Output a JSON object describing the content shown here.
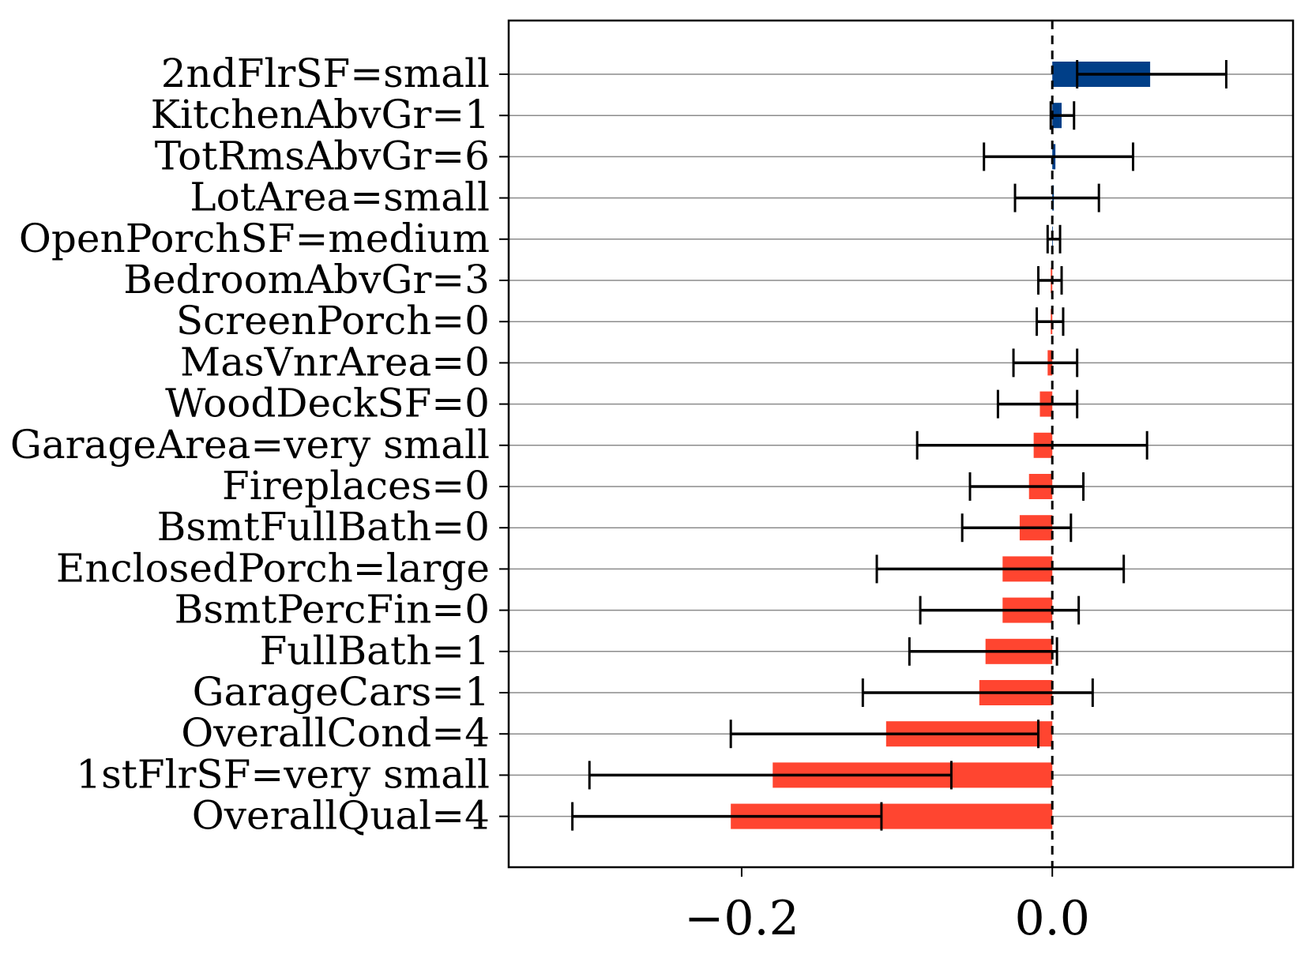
{
  "chart_data": {
    "type": "bar",
    "orientation": "horizontal",
    "title": "",
    "xlabel": "",
    "ylabel": "",
    "xlim": [
      -0.35,
      0.155
    ],
    "grid": "horizontal",
    "zero_line": "dashed",
    "x_ticks": [
      -0.2,
      0.0
    ],
    "x_tick_labels": [
      "−0.2",
      "0.0"
    ],
    "colors": {
      "positive": "#003f88",
      "negative": "#ff4530",
      "error": "#000000",
      "grid": "#8c8c8c"
    },
    "bars": [
      {
        "label": "2ndFlrSF=small",
        "value": 0.063,
        "err_low": 0.016,
        "err_high": 0.112
      },
      {
        "label": "KitchenAbvGr=1",
        "value": 0.006,
        "err_low": -0.001,
        "err_high": 0.014
      },
      {
        "label": "TotRmsAbvGr=6",
        "value": 0.002,
        "err_low": -0.044,
        "err_high": 0.052
      },
      {
        "label": "LotArea=small",
        "value": 0.001,
        "err_low": -0.024,
        "err_high": 0.03
      },
      {
        "label": "OpenPorchSF=medium",
        "value": 0.0,
        "err_low": -0.003,
        "err_high": 0.005
      },
      {
        "label": "BedroomAbvGr=3",
        "value": -0.001,
        "err_low": -0.009,
        "err_high": 0.006
      },
      {
        "label": "ScreenPorch=0",
        "value": -0.001,
        "err_low": -0.01,
        "err_high": 0.007
      },
      {
        "label": "MasVnrArea=0",
        "value": -0.003,
        "err_low": -0.025,
        "err_high": 0.016
      },
      {
        "label": "WoodDeckSF=0",
        "value": -0.008,
        "err_low": -0.035,
        "err_high": 0.016
      },
      {
        "label": "GarageArea=very small",
        "value": -0.012,
        "err_low": -0.087,
        "err_high": 0.061
      },
      {
        "label": "Fireplaces=0",
        "value": -0.015,
        "err_low": -0.053,
        "err_high": 0.02
      },
      {
        "label": "BsmtFullBath=0",
        "value": -0.021,
        "err_low": -0.058,
        "err_high": 0.012
      },
      {
        "label": "EnclosedPorch=large",
        "value": -0.032,
        "err_low": -0.113,
        "err_high": 0.046
      },
      {
        "label": "BsmtPercFin=0",
        "value": -0.032,
        "err_low": -0.085,
        "err_high": 0.017
      },
      {
        "label": "FullBath=1",
        "value": -0.043,
        "err_low": -0.092,
        "err_high": 0.003
      },
      {
        "label": "GarageCars=1",
        "value": -0.047,
        "err_low": -0.122,
        "err_high": 0.026
      },
      {
        "label": "OverallCond=4",
        "value": -0.107,
        "err_low": -0.207,
        "err_high": -0.009
      },
      {
        "label": "1stFlrSF=very small",
        "value": -0.18,
        "err_low": -0.298,
        "err_high": -0.065
      },
      {
        "label": "OverallQual=4",
        "value": -0.207,
        "err_low": -0.309,
        "err_high": -0.11
      }
    ]
  }
}
